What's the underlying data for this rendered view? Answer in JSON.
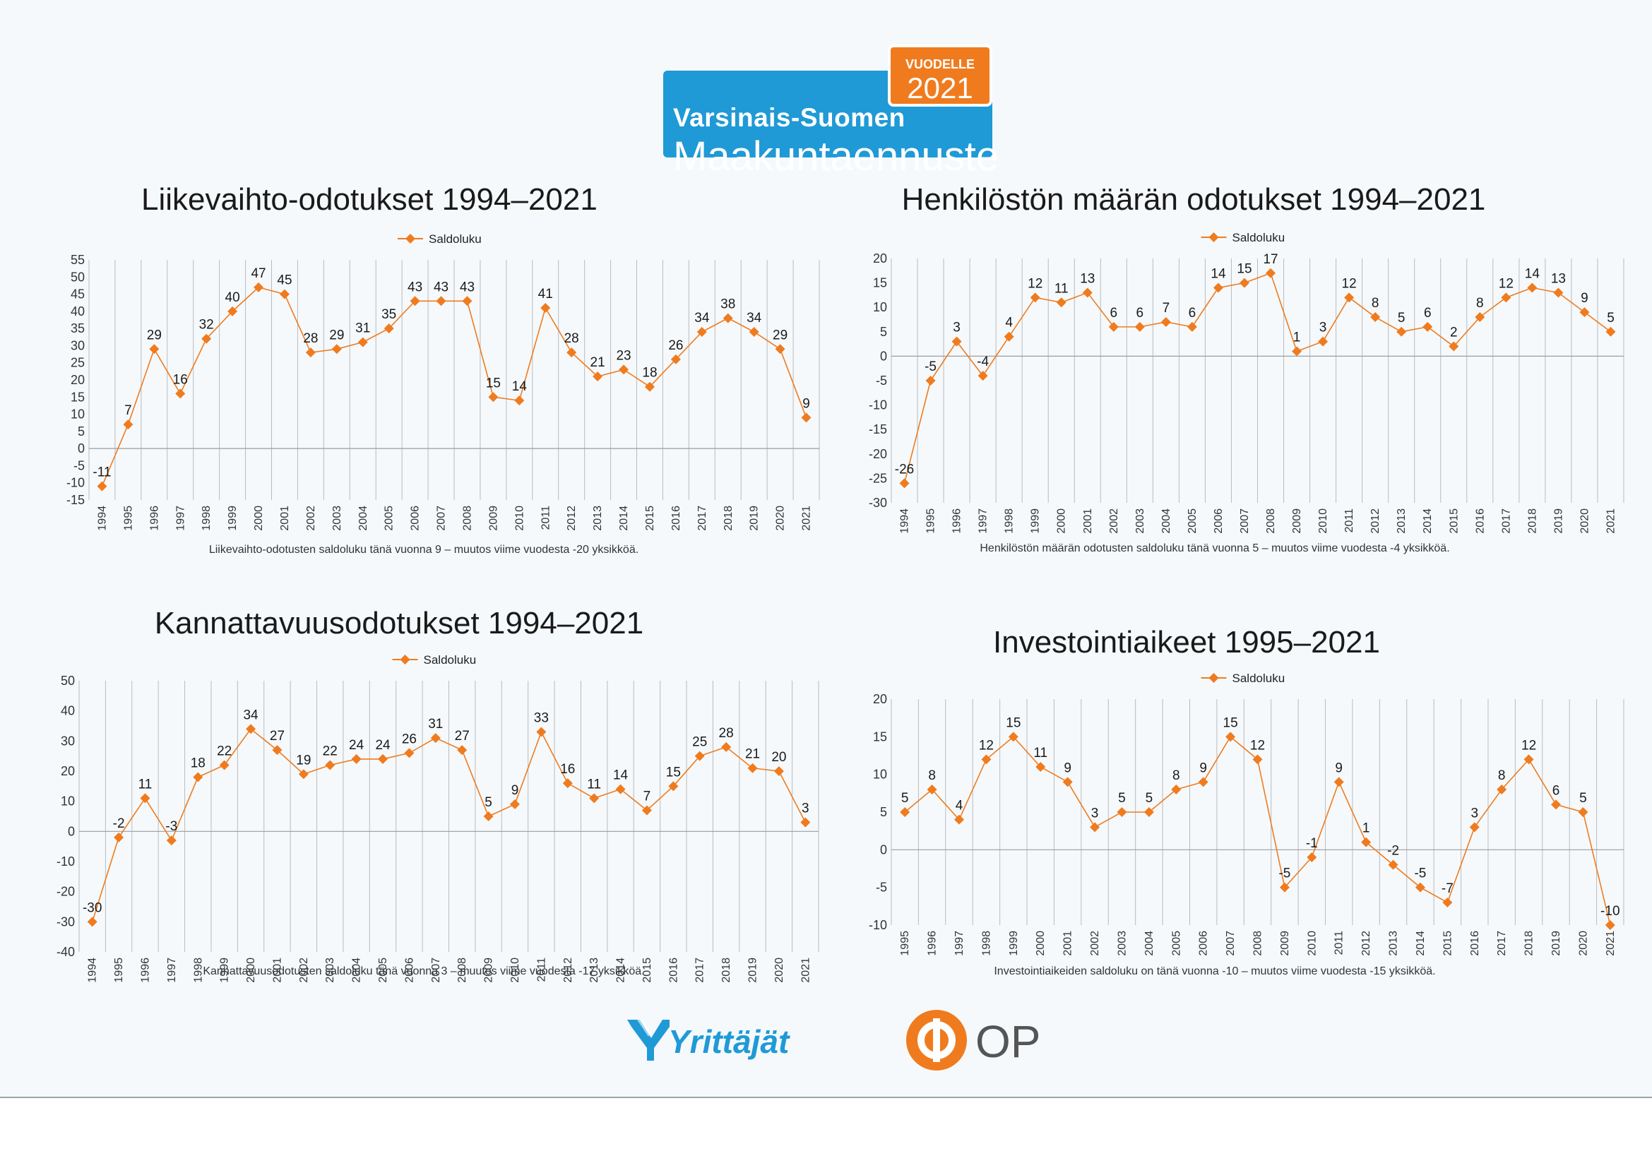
{
  "header": {
    "region": "Varsinais-Suomen",
    "title": "Maakuntaennuste",
    "badge_label": "VUODELLE",
    "badge_year": "2021"
  },
  "colors": {
    "series": "#f07b1e",
    "brand_blue": "#1f9ad6",
    "brand_orange": "#f07b1e"
  },
  "charts": {
    "liikevaihto": {
      "title": "Liikevaihto-odotukset 1994–2021",
      "caption": "Liikevaihto-odotusten saldoluku tänä vuonna 9 – muutos viime vuodesta -20 yksikköä."
    },
    "henkilosto": {
      "title": "Henkilöstön määrän odotukset 1994–2021",
      "caption": "Henkilöstön määrän odotusten saldoluku tänä vuonna 5 – muutos viime vuodesta -4 yksikköä."
    },
    "kannattavuus": {
      "title": "Kannattavuusodotukset 1994–2021",
      "caption": "Kannattavuusodotusten saldoluku tänä vuonna 3 – muutos viime vuodesta -17 yksikköä."
    },
    "investointi": {
      "title": "Investointiaikeet 1995–2021",
      "caption": "Investointiaikeiden saldoluku on tänä vuonna -10 – muutos viime vuodesta -15 yksikköä."
    }
  },
  "footer": {
    "logo1": "Yrittäjät",
    "logo2": "OP"
  },
  "chart_data": [
    {
      "type": "line",
      "title": "Liikevaihto-odotukset 1994–2021",
      "x": [
        "1994",
        "1995",
        "1996",
        "1997",
        "1998",
        "1999",
        "2000",
        "2001",
        "2002",
        "2003",
        "2004",
        "2005",
        "2006",
        "2007",
        "2008",
        "2009",
        "2010",
        "2011",
        "2012",
        "2013",
        "2014",
        "2015",
        "2016",
        "2017",
        "2018",
        "2019",
        "2020",
        "2021"
      ],
      "series": [
        {
          "name": "Saldoluku",
          "values": [
            -11,
            7,
            29,
            16,
            32,
            40,
            47,
            45,
            28,
            29,
            31,
            35,
            43,
            43,
            43,
            15,
            14,
            41,
            28,
            21,
            23,
            18,
            26,
            34,
            38,
            34,
            29,
            9
          ]
        }
      ],
      "ylim": [
        -15,
        55
      ],
      "ytick_step": 5,
      "grid": "vertical",
      "legend": "top-center",
      "data_labels": true,
      "caption": "Liikevaihto-odotusten saldoluku tänä vuonna 9 – muutos viime vuodesta -20 yksikköä."
    },
    {
      "type": "line",
      "title": "Henkilöstön määrän odotukset 1994–2021",
      "x": [
        "1994",
        "1995",
        "1996",
        "1997",
        "1998",
        "1999",
        "2000",
        "2001",
        "2002",
        "2003",
        "2004",
        "2005",
        "2006",
        "2007",
        "2008",
        "2009",
        "2010",
        "2011",
        "2012",
        "2013",
        "2014",
        "2015",
        "2016",
        "2017",
        "2018",
        "2019",
        "2020",
        "2021"
      ],
      "series": [
        {
          "name": "Saldoluku",
          "values": [
            -26,
            -5,
            3,
            -4,
            4,
            12,
            11,
            13,
            6,
            6,
            7,
            6,
            14,
            15,
            17,
            1,
            3,
            12,
            8,
            5,
            6,
            2,
            8,
            12,
            14,
            13,
            9,
            5
          ]
        }
      ],
      "ylim": [
        -30,
        20
      ],
      "ytick_step": 5,
      "grid": "vertical",
      "legend": "top-center",
      "data_labels": true,
      "caption": "Henkilöstön määrän odotusten saldoluku tänä vuonna 5 – muutos viime vuodesta -4 yksikköä."
    },
    {
      "type": "line",
      "title": "Kannattavuusodotukset 1994–2021",
      "x": [
        "1994",
        "1995",
        "1996",
        "1997",
        "1998",
        "1999",
        "2000",
        "2001",
        "2002",
        "2003",
        "2004",
        "2005",
        "2006",
        "2007",
        "2008",
        "2009",
        "2010",
        "2011",
        "2012",
        "2013",
        "2014",
        "2015",
        "2016",
        "2017",
        "2018",
        "2019",
        "2020",
        "2021"
      ],
      "series": [
        {
          "name": "Saldoluku",
          "values": [
            -30,
            -2,
            11,
            -3,
            18,
            22,
            34,
            27,
            19,
            22,
            24,
            24,
            26,
            31,
            27,
            5,
            9,
            33,
            16,
            11,
            14,
            7,
            15,
            25,
            28,
            21,
            20,
            3
          ]
        }
      ],
      "ylim": [
        -40,
        50
      ],
      "ytick_step": 10,
      "grid": "vertical",
      "legend": "top-center",
      "data_labels": true,
      "caption": "Kannattavuusodotusten saldoluku tänä vuonna 3 – muutos viime vuodesta -17 yksikköä."
    },
    {
      "type": "line",
      "title": "Investointiaikeet 1995–2021",
      "x": [
        "1995",
        "1996",
        "1997",
        "1998",
        "1999",
        "2000",
        "2001",
        "2002",
        "2003",
        "2004",
        "2005",
        "2006",
        "2007",
        "2008",
        "2009",
        "2010",
        "2011",
        "2012",
        "2013",
        "2014",
        "2015",
        "2016",
        "2017",
        "2018",
        "2019",
        "2020",
        "2021"
      ],
      "series": [
        {
          "name": "Saldoluku",
          "values": [
            5,
            8,
            4,
            12,
            15,
            11,
            9,
            3,
            5,
            5,
            8,
            9,
            15,
            12,
            -5,
            -1,
            9,
            1,
            -2,
            -5,
            -7,
            3,
            8,
            12,
            6,
            5,
            -10
          ]
        }
      ],
      "ylim": [
        -10,
        20
      ],
      "ytick_step": 5,
      "grid": "vertical",
      "legend": "top-center",
      "data_labels": true,
      "caption": "Investointiaikeiden saldoluku on tänä vuonna -10 – muutos viime vuodesta -15 yksikköä."
    }
  ]
}
